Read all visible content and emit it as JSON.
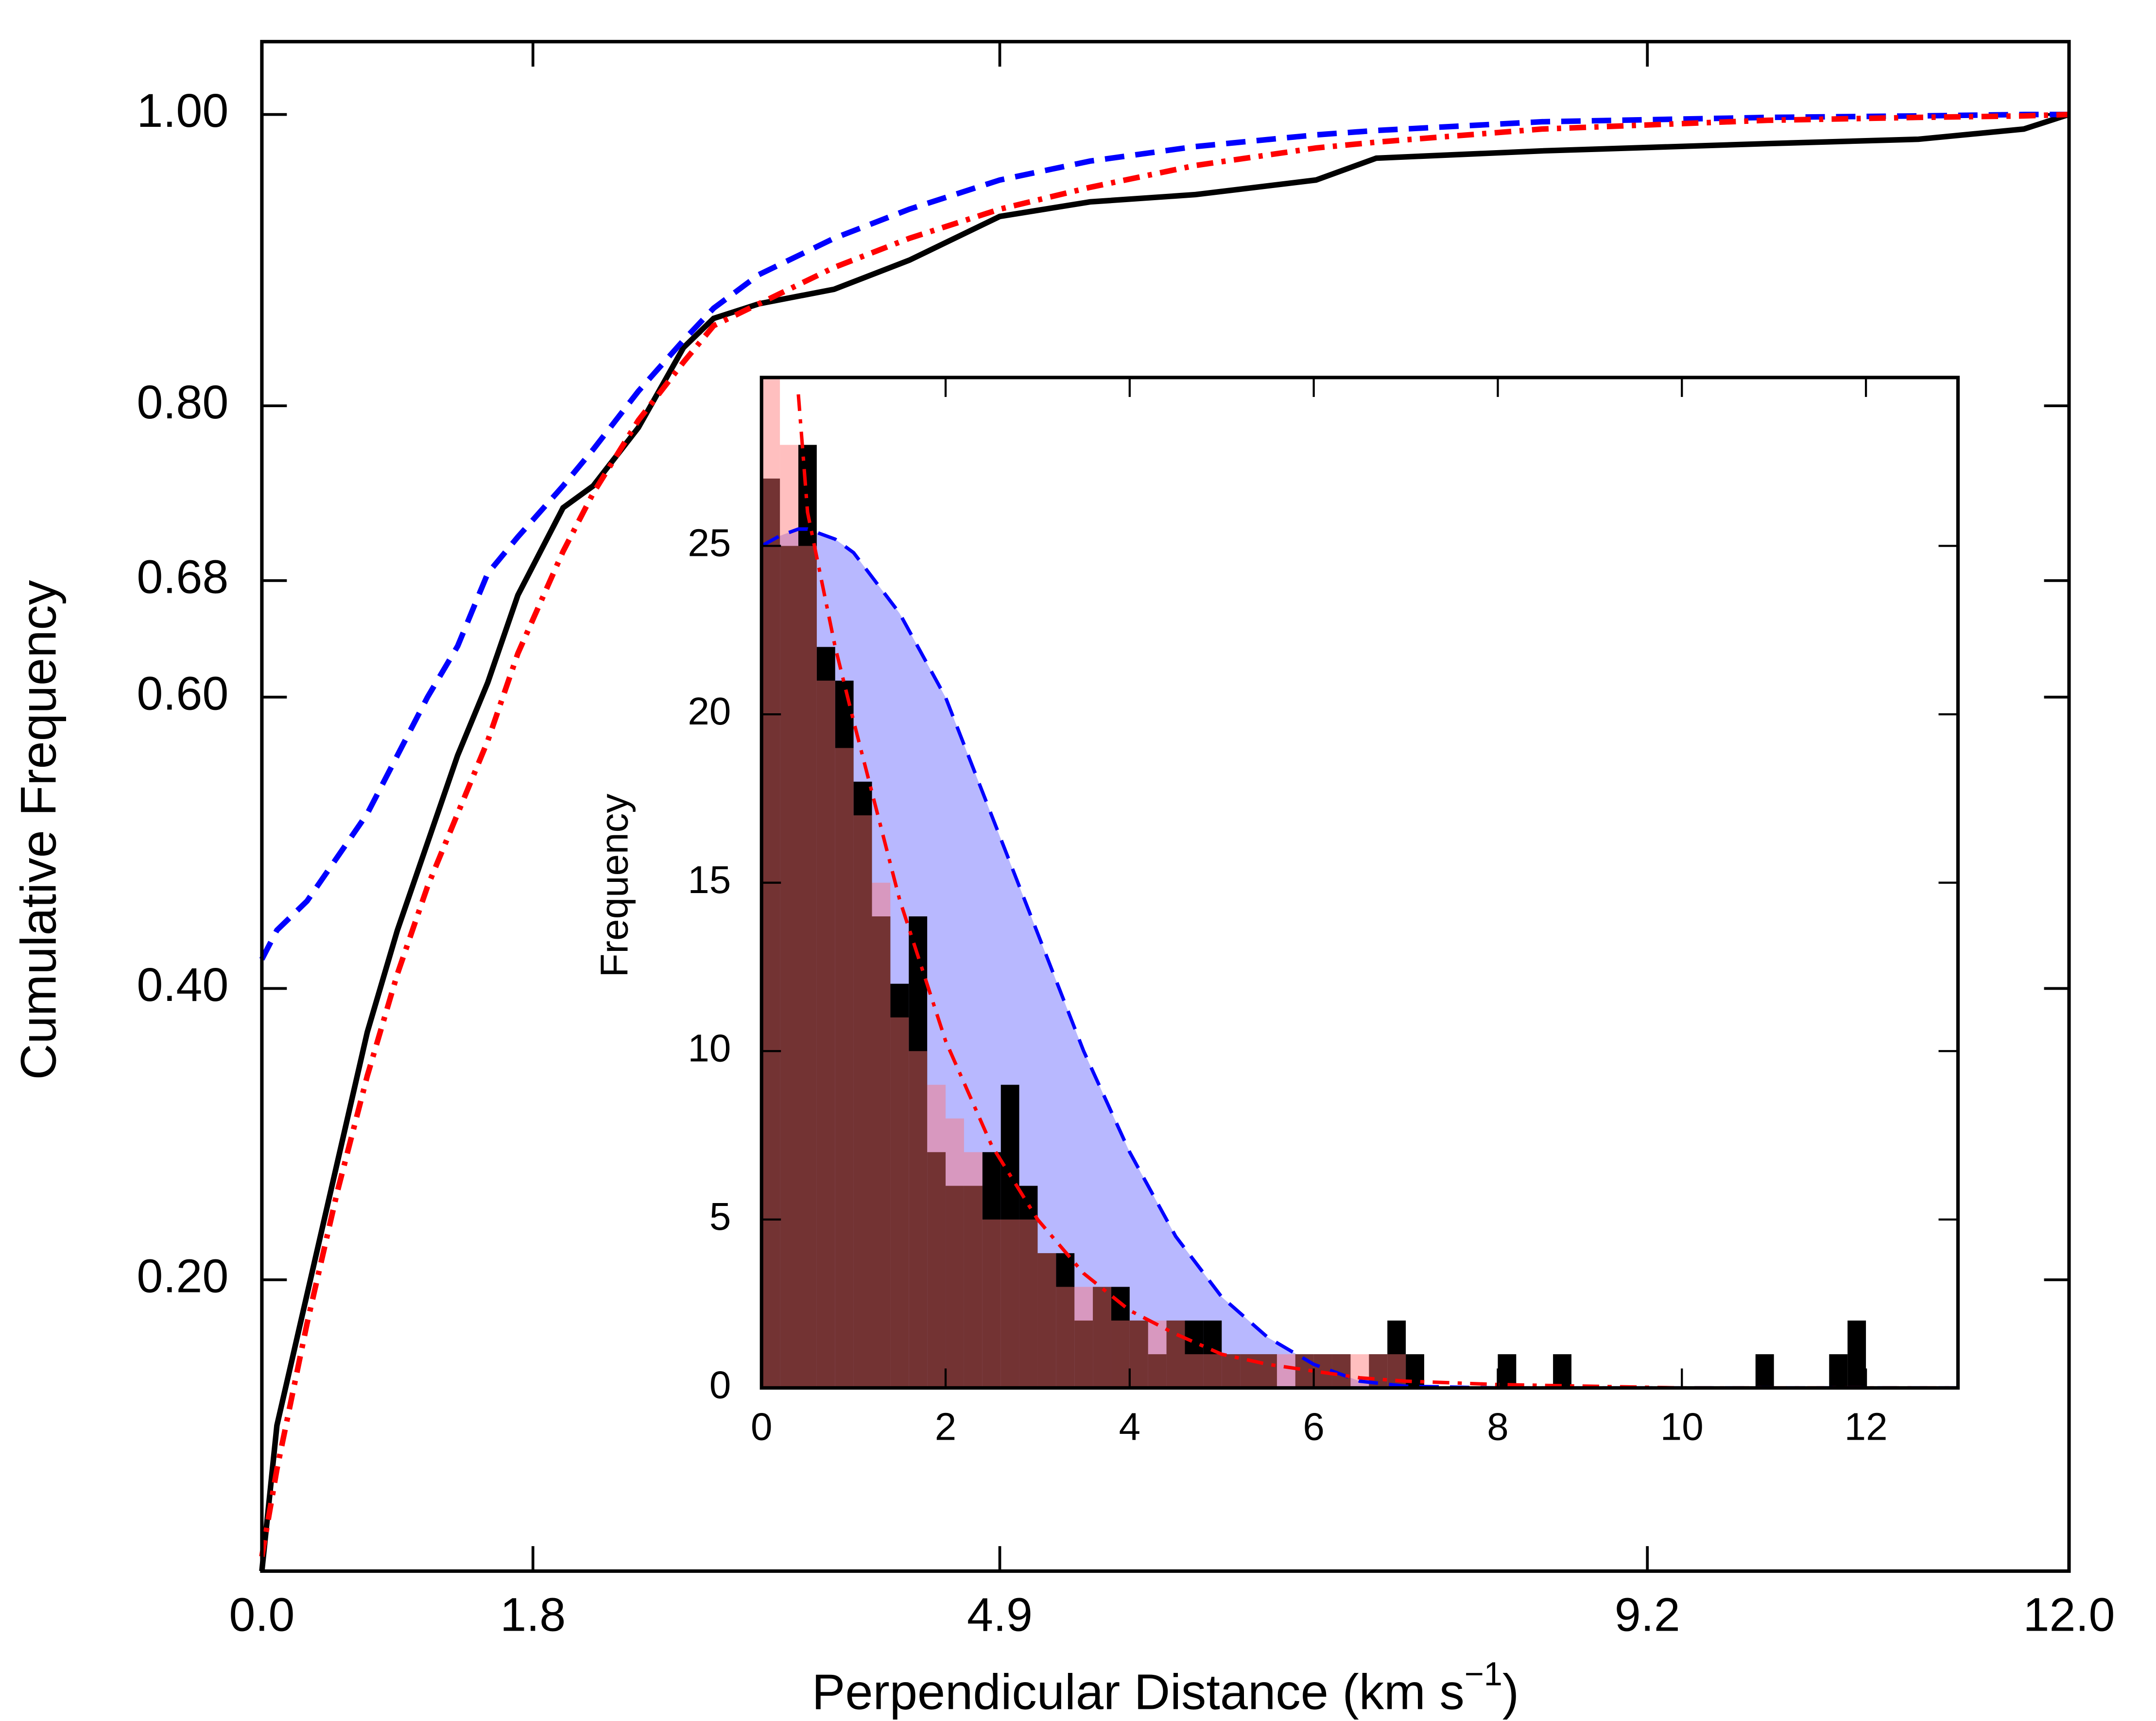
{
  "chart_data": [
    {
      "type": "line",
      "xlabel": "Perpendicular Distance (km s",
      "xlabel_superscript": "−1",
      "xlabel_end": ")",
      "ylabel": "Cumulative Frequency",
      "x": [
        0,
        0.1,
        0.3,
        0.5,
        0.7,
        0.9,
        1.1,
        1.3,
        1.5,
        1.7,
        2.0,
        2.2,
        2.5,
        2.8,
        3.0,
        3.3,
        3.8,
        4.3,
        4.9,
        5.5,
        6.2,
        7.0,
        7.4,
        8.5,
        10,
        11,
        11.7,
        12
      ],
      "series": [
        {
          "color": "#000000",
          "line_style": "solid",
          "values": [
            0,
            0.1,
            0.19,
            0.28,
            0.37,
            0.44,
            0.5,
            0.56,
            0.61,
            0.67,
            0.73,
            0.745,
            0.785,
            0.84,
            0.86,
            0.87,
            0.88,
            0.9,
            0.93,
            0.94,
            0.945,
            0.955,
            0.97,
            0.975,
            0.98,
            0.983,
            0.99,
            1.0
          ]
        },
        {
          "color": "#0000ff",
          "line_style": "dashed",
          "values": [
            0.42,
            0.44,
            0.46,
            0.49,
            0.52,
            0.56,
            0.6,
            0.635,
            0.685,
            0.71,
            0.745,
            0.77,
            0.81,
            0.845,
            0.867,
            0.89,
            0.915,
            0.935,
            0.955,
            0.968,
            0.978,
            0.986,
            0.989,
            0.995,
            0.998,
            0.999,
            1.0,
            1.0
          ]
        },
        {
          "color": "#ff0000",
          "line_style": "dashdot",
          "values": [
            0.01,
            0.07,
            0.17,
            0.26,
            0.34,
            0.41,
            0.47,
            0.52,
            0.57,
            0.63,
            0.7,
            0.74,
            0.79,
            0.83,
            0.855,
            0.87,
            0.895,
            0.915,
            0.935,
            0.95,
            0.965,
            0.977,
            0.981,
            0.99,
            0.996,
            0.998,
            0.999,
            1.0
          ]
        }
      ],
      "xlim": [
        0,
        12
      ],
      "ylim": [
        0,
        1.05
      ],
      "xticks": [
        {
          "value": 0,
          "label": "0.0"
        },
        {
          "value": 1.8,
          "label": "1.8"
        },
        {
          "value": 4.9,
          "label": "4.9"
        },
        {
          "value": 9.2,
          "label": "9.2"
        },
        {
          "value": 12,
          "label": "12.0"
        }
      ],
      "yticks": [
        {
          "value": 0.2,
          "label": "0.20"
        },
        {
          "value": 0.4,
          "label": "0.40"
        },
        {
          "value": 0.6,
          "label": "0.60"
        },
        {
          "value": 0.68,
          "label": "0.68"
        },
        {
          "value": 0.8,
          "label": "0.80"
        },
        {
          "value": 1.0,
          "label": "1.00"
        }
      ]
    },
    {
      "type": "histogram",
      "ylabel": "Frequency",
      "bins": [
        0,
        0.2,
        0.4,
        0.6,
        0.8,
        1,
        1.2,
        1.4,
        1.6,
        1.8,
        2,
        2.2,
        2.4,
        2.6,
        2.8,
        3,
        3.2,
        3.4,
        3.6,
        3.8,
        4,
        4.2,
        4.4,
        4.6,
        4.8,
        5,
        5.2,
        5.4,
        5.6,
        5.8,
        6,
        6.2,
        6.4,
        6.6,
        6.8,
        7,
        7.2,
        7.4,
        7.6,
        7.8,
        8,
        8.2,
        8.4,
        8.6,
        8.8,
        9,
        9.2,
        9.4,
        9.6,
        9.8,
        10,
        10.2,
        10.4,
        10.6,
        10.8,
        11,
        11.2,
        11.4,
        11.6,
        11.8,
        12
      ],
      "series": [
        {
          "color": "#000000",
          "opacity": 1,
          "values": [
            27,
            25,
            28,
            22,
            21,
            18,
            14,
            12,
            14,
            7,
            6,
            6,
            7,
            9,
            6,
            4,
            4,
            2,
            3,
            3,
            2,
            1,
            2,
            2,
            2,
            1,
            1,
            1,
            0,
            1,
            1,
            1,
            0,
            1,
            2,
            1,
            0,
            0,
            0,
            0,
            1,
            0,
            0,
            1,
            0,
            0,
            0,
            0,
            0,
            0,
            0,
            0,
            0,
            0,
            1,
            0,
            0,
            0,
            1,
            2
          ]
        },
        {
          "color": "#ff7070",
          "opacity": 0.45,
          "values": [
            30,
            28,
            25,
            21,
            19,
            17,
            15,
            11,
            10,
            9,
            8,
            7,
            5,
            5,
            5,
            4,
            3,
            3,
            3,
            2,
            2,
            2,
            2,
            1,
            1,
            1,
            1,
            1,
            1,
            1,
            1,
            1,
            1,
            1,
            1,
            0,
            0,
            0,
            0,
            0,
            0,
            0,
            0,
            0,
            0,
            0,
            0,
            0,
            0,
            0,
            0,
            0,
            0,
            0,
            0,
            0,
            0,
            0,
            0,
            0
          ]
        }
      ],
      "curve_x": [
        0,
        0.2,
        0.4,
        0.5,
        0.8,
        1,
        1.5,
        2,
        2.5,
        3,
        3.5,
        4,
        4.5,
        5,
        5.5,
        6,
        6.5,
        7,
        8,
        9,
        10,
        11,
        12,
        13
      ],
      "curves": [
        {
          "color": "#0000ff",
          "fill": "#b8b8ff",
          "line_style": "dashed",
          "values": [
            25,
            25.3,
            25.5,
            25.5,
            25.2,
            24.8,
            23,
            20.5,
            17,
            13.5,
            10,
            7,
            4.5,
            2.7,
            1.5,
            0.7,
            0.2,
            0.05,
            0,
            0,
            0,
            0,
            0,
            0
          ]
        },
        {
          "color": "#ff0000",
          "line_style": "dashdot",
          "values": [
            null,
            null,
            29.5,
            26,
            22,
            19.8,
            14.5,
            10.3,
            7.2,
            5,
            3.4,
            2.3,
            1.6,
            1.0,
            0.7,
            0.5,
            0.3,
            0.2,
            0.1,
            0.05,
            0,
            0,
            0,
            0
          ]
        }
      ],
      "xlim": [
        0,
        13
      ],
      "ylim": [
        0,
        30
      ],
      "xticks": [
        0,
        2,
        4,
        6,
        8,
        10,
        12
      ],
      "yticks": [
        0,
        5,
        10,
        15,
        20,
        25
      ]
    }
  ]
}
